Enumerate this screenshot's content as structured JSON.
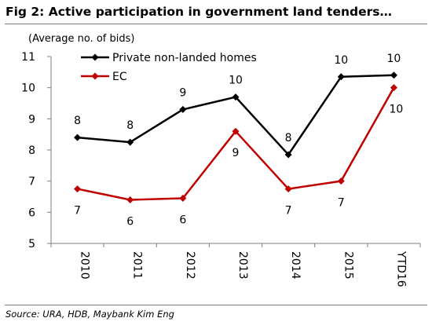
{
  "figure": {
    "title": "Fig 2: Active participation in government land tenders…",
    "source": "Source: URA, HDB, Maybank Kim Eng"
  },
  "chart_data": {
    "type": "line",
    "unit_label": "(Average no. of bids)",
    "categories": [
      "2010",
      "2011",
      "2012",
      "2013",
      "2014",
      "2015",
      "YTD16"
    ],
    "ylim": [
      5,
      11
    ],
    "yticks": [
      5,
      6,
      7,
      8,
      9,
      10,
      11
    ],
    "grid": false,
    "legend_position": "top-left",
    "series": [
      {
        "name": "Private non-landed homes",
        "color": "#000000",
        "values": [
          8.4,
          8.25,
          9.3,
          9.7,
          7.85,
          10.35,
          10.4
        ],
        "data_labels": [
          "8",
          "8",
          "9",
          "10",
          "8",
          "10",
          "10"
        ],
        "label_side": [
          "above",
          "above",
          "above",
          "above",
          "above",
          "above",
          "above"
        ]
      },
      {
        "name": "EC",
        "color": "#c00000",
        "values": [
          6.75,
          6.4,
          6.45,
          8.6,
          6.75,
          7.0,
          10.0
        ],
        "data_labels": [
          "7",
          "6",
          "6",
          "9",
          "7",
          "7",
          "10"
        ],
        "label_side": [
          "below",
          "below",
          "below",
          "below",
          "below",
          "below",
          "below-right"
        ]
      }
    ]
  }
}
